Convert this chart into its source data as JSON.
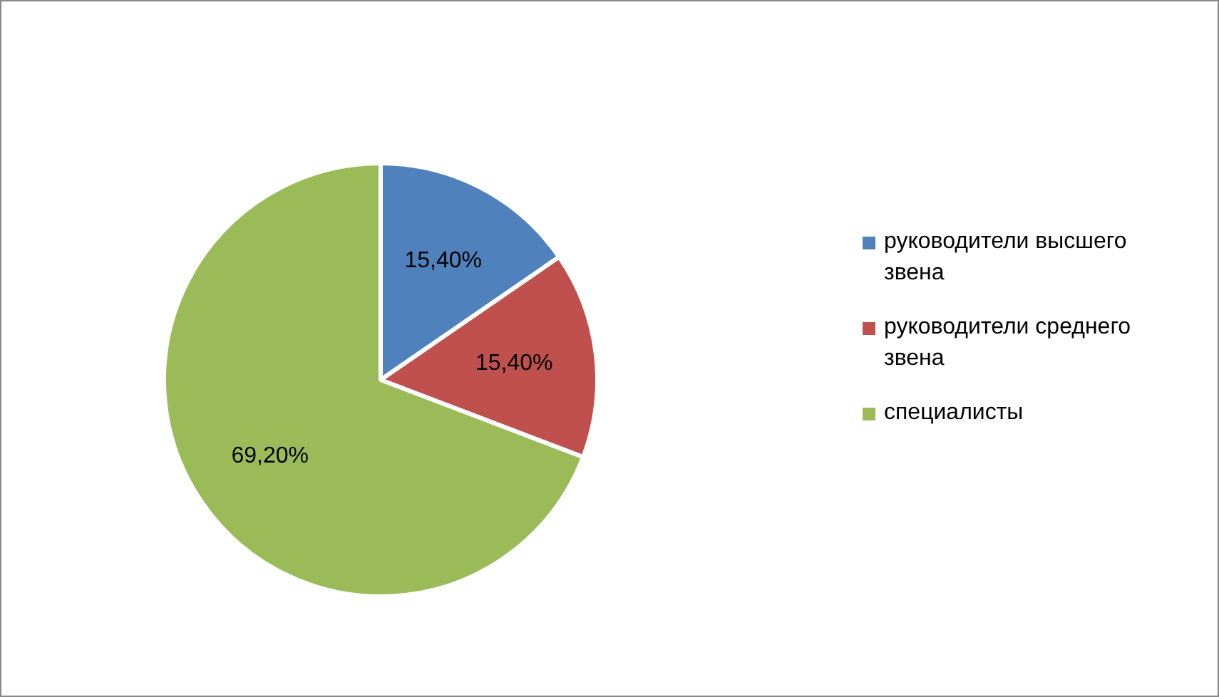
{
  "chart_data": {
    "type": "pie",
    "categories": [
      "руководители высшего звена",
      "руководители среднего звена",
      "специалисты"
    ],
    "values": [
      15.4,
      15.4,
      69.2
    ],
    "colors": [
      "#4f81bd",
      "#c0504d",
      "#9bbb59"
    ],
    "value_labels": [
      "15,40%",
      "15,40%",
      "69,20%"
    ],
    "legend": "right"
  }
}
